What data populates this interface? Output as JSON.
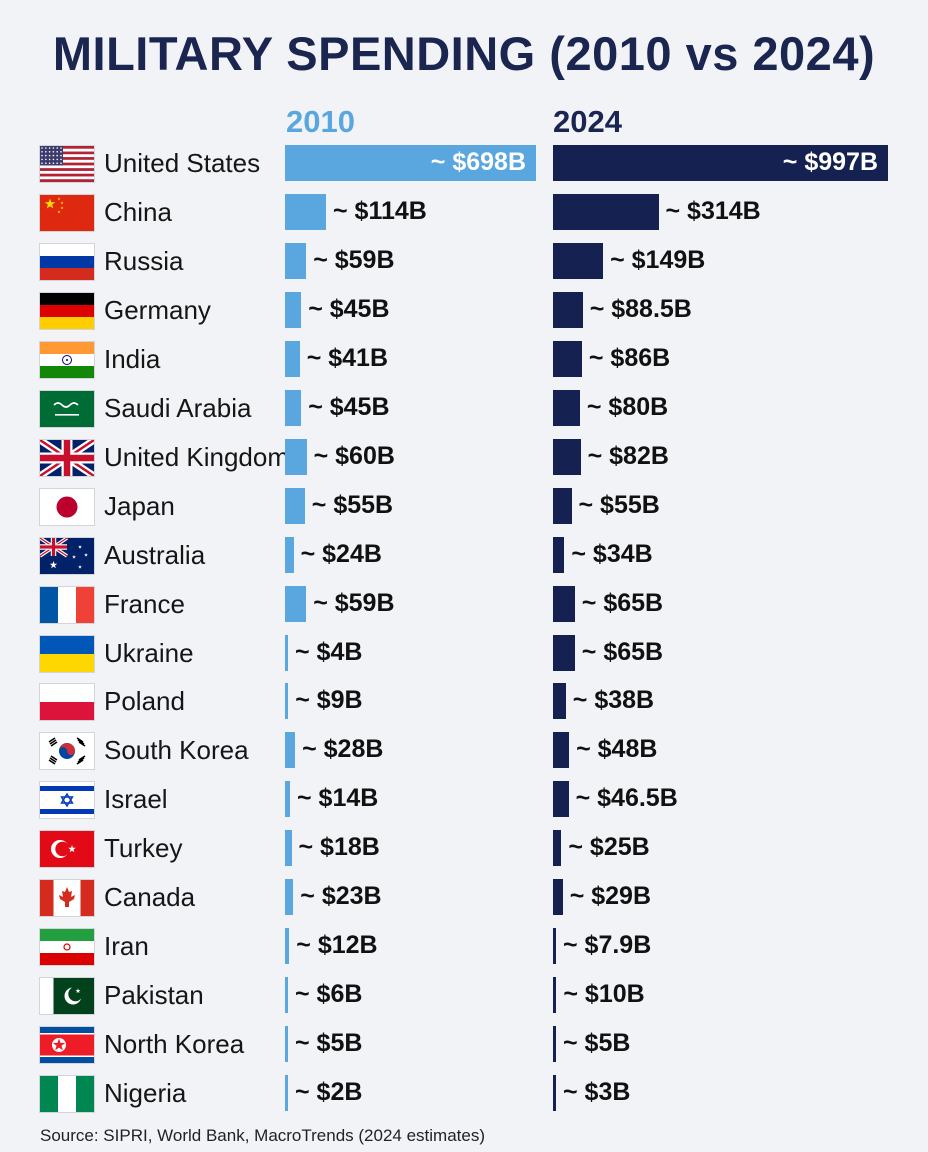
{
  "chart_data": {
    "type": "bar",
    "title": "MILITARY SPENDING (2010 vs 2024)",
    "source": "Source: SIPRI, World Bank, MacroTrends (2024 estimates)",
    "categories": [
      "United States",
      "China",
      "Russia",
      "Germany",
      "India",
      "Saudi Arabia",
      "United Kingdom",
      "Japan",
      "Australia",
      "France",
      "Ukraine",
      "Poland",
      "South Korea",
      "Israel",
      "Turkey",
      "Canada",
      "Iran",
      "Pakistan",
      "North Korea",
      "Nigeria"
    ],
    "flag_icons": [
      "flag-united-states-icon",
      "flag-china-icon",
      "flag-russia-icon",
      "flag-germany-icon",
      "flag-india-icon",
      "flag-saudi-arabia-icon",
      "flag-united-kingdom-icon",
      "flag-japan-icon",
      "flag-australia-icon",
      "flag-france-icon",
      "flag-ukraine-icon",
      "flag-poland-icon",
      "flag-south-korea-icon",
      "flag-israel-icon",
      "flag-turkey-icon",
      "flag-canada-icon",
      "flag-iran-icon",
      "flag-pakistan-icon",
      "flag-north-korea-icon",
      "flag-nigeria-icon"
    ],
    "series": [
      {
        "name": "2010",
        "color": "#5aa6df",
        "values": [
          698,
          114,
          59,
          45,
          41,
          45,
          60,
          55,
          24,
          59,
          4,
          9,
          28,
          14,
          18,
          23,
          12,
          6,
          5,
          2
        ],
        "labels": [
          "~ $698B",
          "~ $114B",
          "~ $59B",
          "~ $45B",
          "~ $41B",
          "~ $45B",
          "~ $60B",
          "~ $55B",
          "~ $24B",
          "~ $59B",
          "~ $4B",
          "~ $9B",
          "~ $28B",
          "~ $14B",
          "~ $18B",
          "~ $23B",
          "~ $12B",
          "~ $6B",
          "~ $5B",
          "~ $2B"
        ]
      },
      {
        "name": "2024",
        "color": "#152151",
        "values": [
          997,
          314,
          149,
          88.5,
          86,
          80,
          82,
          55,
          34,
          65,
          65,
          38,
          48,
          46.5,
          25,
          29,
          7.9,
          10,
          5,
          3
        ],
        "labels": [
          "~ $997B",
          "~ $314B",
          "~ $149B",
          "~ $88.5B",
          "~ $86B",
          "~ $80B",
          "~ $82B",
          "~ $55B",
          "~ $34B",
          "~ $65B",
          "~ $65B",
          "~ $38B",
          "~ $48B",
          "~ $46.5B",
          "~ $25B",
          "~ $29B",
          "~ $7.9B",
          "~ $10B",
          "~ $5B",
          "~ $3B"
        ]
      }
    ],
    "unit": "$B",
    "ylabel": "",
    "xlabel": "",
    "grid": false,
    "legend": "column headers above bars"
  }
}
